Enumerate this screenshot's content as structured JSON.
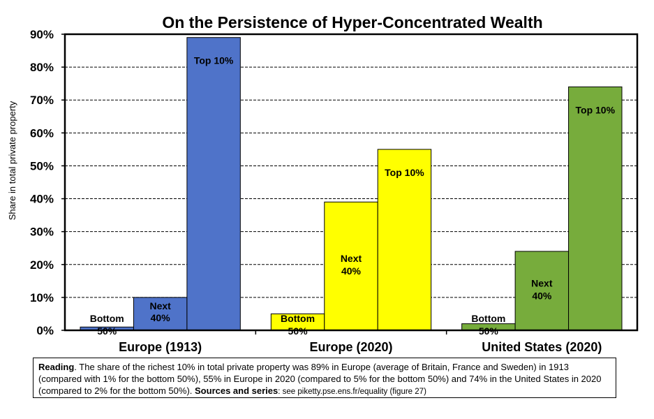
{
  "chart_data": {
    "type": "bar",
    "title": "On the Persistence of Hyper-Concentrated Wealth",
    "ylabel": "Share in total private property",
    "xlabel": "",
    "ylim": [
      0,
      90
    ],
    "yticks": [
      0,
      10,
      20,
      30,
      40,
      50,
      60,
      70,
      80,
      90
    ],
    "ytick_labels": [
      "0%",
      "10%",
      "20%",
      "30%",
      "40%",
      "50%",
      "60%",
      "70%",
      "80%",
      "90%"
    ],
    "grid": true,
    "categories": [
      "Europe (1913)",
      "Europe (2020)",
      "United States (2020)"
    ],
    "colors": [
      "#4f73c9",
      "#ffff00",
      "#77ac3c"
    ],
    "groups": [
      {
        "category": "Europe (1913)",
        "bars": [
          {
            "label_line1": "Bottom",
            "label_line2": "50%",
            "value": 1
          },
          {
            "label_line1": "Next",
            "label_line2": "40%",
            "value": 10
          },
          {
            "label_line1": "Top 10%",
            "label_line2": "",
            "value": 89
          }
        ]
      },
      {
        "category": "Europe (2020)",
        "bars": [
          {
            "label_line1": "Bottom",
            "label_line2": "50%",
            "value": 5
          },
          {
            "label_line1": "Next",
            "label_line2": "40%",
            "value": 39
          },
          {
            "label_line1": "Top 10%",
            "label_line2": "",
            "value": 55
          }
        ]
      },
      {
        "category": "United States (2020)",
        "bars": [
          {
            "label_line1": "Bottom",
            "label_line2": "50%",
            "value": 2
          },
          {
            "label_line1": "Next",
            "label_line2": "40%",
            "value": 24
          },
          {
            "label_line1": "Top 10%",
            "label_line2": "",
            "value": 74
          }
        ]
      }
    ]
  },
  "note": {
    "reading_label": "Reading",
    "reading_text": ". The share of the richest 10% in total private property was 89% in Europe (average of Britain, France and Sweden) in 1913 (compared with 1% for the bottom 50%), 55% in Europe in 2020 (compared to 5% for the bottom 50%) and 74% in the United States in 2020 (compared to 2% for the bottom 50%).",
    "sources_label": "Sources and series",
    "sources_text": ": see piketty.pse.ens.fr/equality (figure 27)"
  }
}
